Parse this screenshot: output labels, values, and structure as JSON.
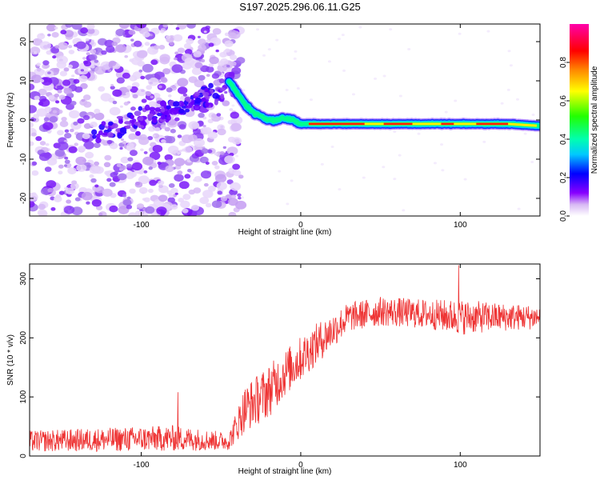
{
  "title": "S197.2025.296.06.11.G25",
  "chart_data": [
    {
      "type": "heatmap",
      "xlabel": "Height of straight line (km)",
      "ylabel": "Frequency (Hz)",
      "xlim": [
        -170,
        150
      ],
      "ylim": [
        -24.5,
        24.5
      ],
      "xticks": [
        -100,
        0,
        100
      ],
      "xtick_labels": [
        "-100",
        "0",
        "100"
      ],
      "yticks": [
        20,
        10,
        0,
        -10,
        -20
      ],
      "ytick_labels": [
        "20",
        "10",
        "0",
        "-10",
        "-20"
      ],
      "colorbar": {
        "label": "Normalized spectral amplitude",
        "range": [
          0,
          1
        ],
        "ticks": [
          0.0,
          0.2,
          0.4,
          0.6,
          0.8
        ],
        "tick_labels": [
          "0.0",
          "0.2",
          "0.4",
          "0.6",
          "0.8"
        ],
        "colormap": [
          "#ffffff",
          "#c8a0f0",
          "#8800ff",
          "#0000ff",
          "#00c8ff",
          "#00ff80",
          "#66ff00",
          "#ffff00",
          "#ff8800",
          "#ff0000",
          "#ff00aa"
        ]
      },
      "ridge": {
        "x": [
          -45,
          -40,
          -35,
          -30,
          -25,
          -20,
          -15,
          -10,
          -5,
          0,
          10,
          30,
          50,
          70,
          90,
          110,
          130,
          150
        ],
        "frequency": [
          10,
          7,
          4,
          2,
          1,
          0,
          0,
          0.5,
          0,
          -1,
          -1,
          -1,
          -1,
          -1,
          -1,
          -1,
          -1,
          -1.5
        ]
      },
      "noise_region_x": [
        -170,
        -45
      ]
    },
    {
      "type": "line",
      "xlabel": "Height of straight line (km)",
      "ylabel": "SNR (10 * v/v)",
      "xlim": [
        -170,
        150
      ],
      "ylim": [
        0,
        325
      ],
      "xticks": [
        -100,
        0,
        100
      ],
      "xtick_labels": [
        "-100",
        "0",
        "100"
      ],
      "yticks": [
        0,
        100,
        200,
        300
      ],
      "ytick_labels": [
        "0",
        "100",
        "200",
        "300"
      ],
      "color": "#ee3333",
      "series_name": "SNR",
      "envelope": {
        "x": [
          -170,
          -80,
          -45,
          -35,
          -20,
          -10,
          10,
          30,
          50,
          80,
          100,
          120,
          150
        ],
        "mean": [
          25,
          30,
          25,
          80,
          110,
          140,
          190,
          235,
          245,
          240,
          235,
          235,
          235
        ],
        "spread": [
          18,
          22,
          15,
          40,
          45,
          40,
          35,
          25,
          25,
          25,
          30,
          25,
          20
        ]
      },
      "peaks": [
        {
          "x": -77,
          "y": 108
        },
        {
          "x": 99,
          "y": 323
        }
      ]
    }
  ]
}
